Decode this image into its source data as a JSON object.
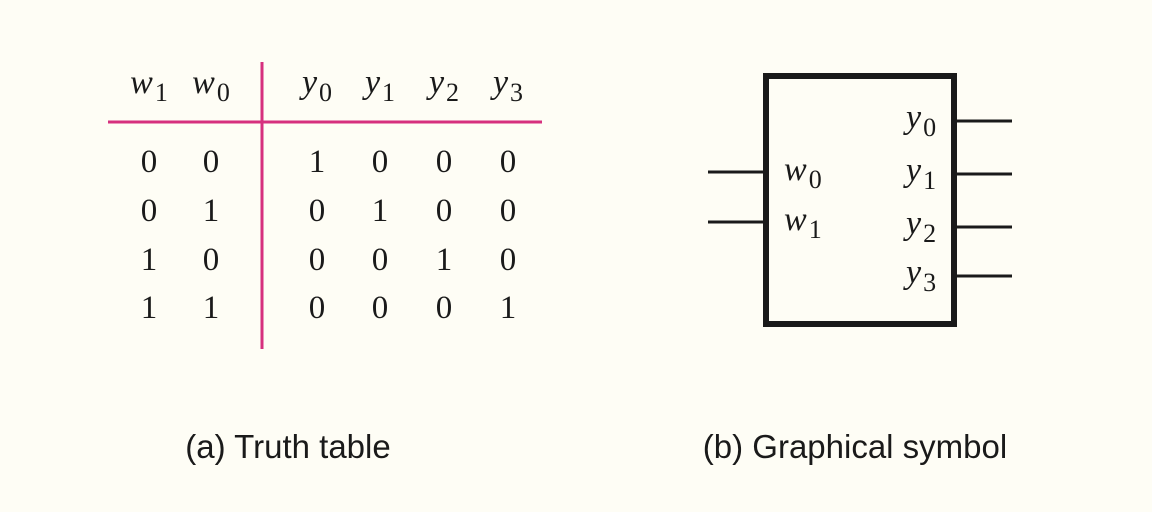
{
  "truth_table": {
    "input_headers": [
      {
        "var": "w",
        "sub": "1"
      },
      {
        "var": "w",
        "sub": "0"
      }
    ],
    "output_headers": [
      {
        "var": "y",
        "sub": "0"
      },
      {
        "var": "y",
        "sub": "1"
      },
      {
        "var": "y",
        "sub": "2"
      },
      {
        "var": "y",
        "sub": "3"
      }
    ],
    "rows": [
      {
        "inputs": [
          "0",
          "0"
        ],
        "outputs": [
          "1",
          "0",
          "0",
          "0"
        ]
      },
      {
        "inputs": [
          "0",
          "1"
        ],
        "outputs": [
          "0",
          "1",
          "0",
          "0"
        ]
      },
      {
        "inputs": [
          "1",
          "0"
        ],
        "outputs": [
          "0",
          "0",
          "1",
          "0"
        ]
      },
      {
        "inputs": [
          "1",
          "1"
        ],
        "outputs": [
          "0",
          "0",
          "0",
          "1"
        ]
      }
    ],
    "caption": "(a) Truth table",
    "rule_color": "#d6307e"
  },
  "symbol": {
    "inputs": [
      {
        "var": "w",
        "sub": "0"
      },
      {
        "var": "w",
        "sub": "1"
      }
    ],
    "outputs": [
      {
        "var": "y",
        "sub": "0"
      },
      {
        "var": "y",
        "sub": "1"
      },
      {
        "var": "y",
        "sub": "2"
      },
      {
        "var": "y",
        "sub": "3"
      }
    ],
    "caption": "(b) Graphical symbol"
  }
}
